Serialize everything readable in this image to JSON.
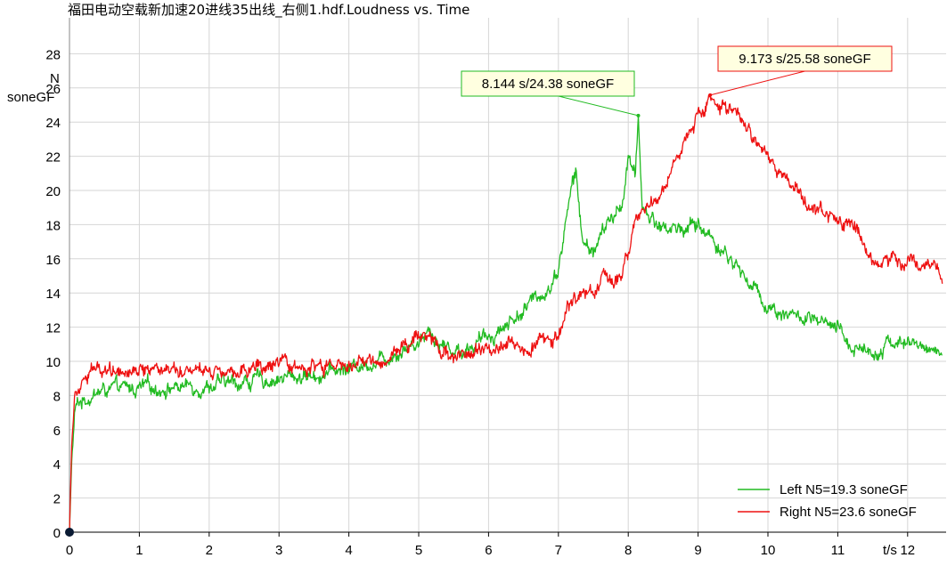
{
  "chart_data": {
    "type": "line",
    "title": "福田电动空载新加速20进线35出线_右侧1.hdf.Loudness vs. Time",
    "xlabel": "t/s",
    "ylabel_top": "N",
    "ylabel_unit": "soneGF",
    "xlim": [
      0,
      12.5
    ],
    "ylim": [
      0,
      30
    ],
    "xticks": [
      "0",
      "1",
      "2",
      "3",
      "4",
      "5",
      "6",
      "7",
      "8",
      "9",
      "10",
      "11",
      "12"
    ],
    "yticks": [
      "0",
      "2",
      "4",
      "6",
      "8",
      "10",
      "12",
      "14",
      "16",
      "18",
      "20",
      "22",
      "24",
      "26",
      "28"
    ],
    "grid": true,
    "legend_position": "bottom-right",
    "series": [
      {
        "name": "Left N5=19.3 soneGF",
        "color": "#22bb22",
        "noise": 0.45,
        "x": [
          0,
          0.03,
          0.08,
          0.15,
          0.3,
          0.5,
          1.0,
          1.5,
          2.0,
          2.5,
          3.0,
          3.5,
          4.0,
          4.5,
          5.0,
          5.15,
          5.3,
          5.6,
          5.9,
          6.2,
          6.5,
          6.9,
          7.0,
          7.1,
          7.2,
          7.25,
          7.35,
          7.5,
          7.7,
          7.9,
          8.0,
          8.1,
          8.144,
          8.2,
          8.3,
          8.5,
          8.8,
          9.0,
          9.2,
          9.5,
          9.7,
          10.0,
          10.5,
          11.0,
          11.2,
          11.5,
          11.8,
          12.0,
          12.5
        ],
        "y": [
          0,
          4,
          7.2,
          7.6,
          8.0,
          8.3,
          8.4,
          8.5,
          8.6,
          8.8,
          9.0,
          9.2,
          9.6,
          10.2,
          11.2,
          12.0,
          11.0,
          10.6,
          11.2,
          12.0,
          13.0,
          14.5,
          15.5,
          18.0,
          20.5,
          21.0,
          16.8,
          16.5,
          18.0,
          19.0,
          22.0,
          20.5,
          24.38,
          19.0,
          18.5,
          17.8,
          17.8,
          18.0,
          17.2,
          15.8,
          14.8,
          13.2,
          12.5,
          11.8,
          10.9,
          10.6,
          11.2,
          11.0,
          10.6
        ],
        "peak": {
          "x": 8.144,
          "y": 24.38,
          "label": "8.144 s/24.38 soneGF"
        }
      },
      {
        "name": "Right N5=23.6 soneGF",
        "color": "#ee1111",
        "noise": 0.45,
        "x": [
          0,
          0.03,
          0.08,
          0.15,
          0.3,
          0.5,
          1.0,
          1.5,
          2.0,
          2.5,
          3.0,
          3.5,
          4.0,
          4.5,
          5.0,
          5.15,
          5.3,
          5.6,
          5.9,
          6.2,
          6.5,
          6.9,
          7.0,
          7.2,
          7.5,
          7.8,
          8.0,
          8.1,
          8.3,
          8.5,
          8.7,
          9.0,
          9.173,
          9.3,
          9.6,
          10.0,
          10.3,
          10.6,
          11.0,
          11.3,
          11.5,
          11.8,
          12.0,
          12.3,
          12.5
        ],
        "y": [
          0,
          5,
          8.4,
          9.0,
          9.4,
          9.6,
          9.6,
          9.7,
          9.6,
          9.6,
          9.6,
          9.6,
          9.7,
          10.1,
          11.5,
          11.8,
          10.8,
          10.3,
          10.6,
          11.2,
          11.0,
          11.2,
          12.0,
          13.5,
          14.3,
          14.8,
          16.0,
          18.0,
          19.5,
          20.0,
          22.0,
          24.4,
          25.58,
          24.8,
          24.2,
          21.8,
          20.3,
          19.2,
          18.1,
          17.4,
          16.0,
          16.0,
          16.2,
          15.5,
          14.8
        ],
        "peak": {
          "x": 9.173,
          "y": 25.58,
          "label": "9.173 s/25.58 soneGF"
        }
      }
    ]
  },
  "colors": {
    "background": "#ffffff",
    "grid": "#d6d6d6",
    "axis": "#000000",
    "left_annotation_fill": "#ffffe0",
    "left_annotation_border": "#22bb22",
    "right_annotation_fill": "#ffffe0",
    "right_annotation_border": "#ee1111",
    "origin_marker": "#0a1a33"
  }
}
